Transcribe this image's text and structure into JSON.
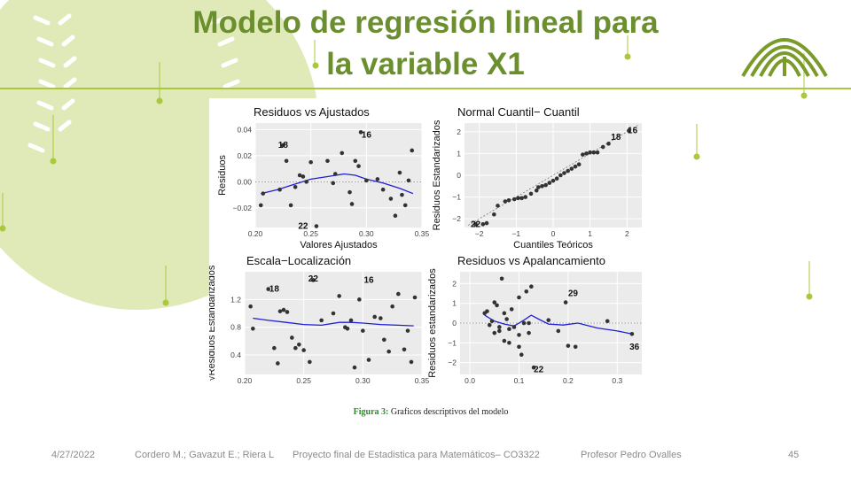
{
  "slide": {
    "title_line1": "Modelo de regresión lineal para",
    "title_line2": "la variable X1",
    "caption_label": "Figura 3:",
    "caption_text": " Graficos descriptivos del modelo",
    "footer_date": "4/27/2022",
    "footer_authors": "Cordero M.; Gavazut E.;  Riera L",
    "footer_project": "Proyecto final de Estadistica para Matemáticos– CO3322",
    "footer_professor": "Profesor Pedro Ovalles",
    "footer_page": "45"
  },
  "colors": {
    "accent": "#6b8e2e",
    "rule": "#a9c83b",
    "deco_circle": "#dfeab8",
    "panel_bg": "#ebebeb",
    "point": "#333333",
    "smooth": "#1f1fd6"
  },
  "chart_data": [
    {
      "type": "scatter",
      "title": "Residuos vs Ajustados",
      "xlabel": "Valores Ajustados",
      "ylabel": "Residuos",
      "xlim": [
        0.2,
        0.35
      ],
      "ylim": [
        -0.035,
        0.045
      ],
      "xticks": [
        0.2,
        0.25,
        0.3,
        0.35
      ],
      "xtick_labels": [
        "0.20",
        "0.25",
        "0.30",
        "0.35"
      ],
      "yticks": [
        -0.02,
        0.0,
        0.02,
        0.04
      ],
      "ytick_labels": [
        "−0.02",
        "0.00",
        "0.02",
        "0.04"
      ],
      "refline": 0,
      "points": [
        [
          0.205,
          -0.018
        ],
        [
          0.207,
          -0.009
        ],
        [
          0.222,
          -0.006
        ],
        [
          0.225,
          0.028
        ],
        [
          0.228,
          0.016
        ],
        [
          0.232,
          -0.018
        ],
        [
          0.236,
          -0.004
        ],
        [
          0.24,
          0.005
        ],
        [
          0.243,
          0.004
        ],
        [
          0.246,
          0.0
        ],
        [
          0.25,
          0.015
        ],
        [
          0.255,
          -0.034
        ],
        [
          0.265,
          0.016
        ],
        [
          0.27,
          -0.001
        ],
        [
          0.272,
          0.006
        ],
        [
          0.278,
          0.022
        ],
        [
          0.285,
          -0.008
        ],
        [
          0.287,
          -0.017
        ],
        [
          0.29,
          0.016
        ],
        [
          0.293,
          0.012
        ],
        [
          0.295,
          0.038
        ],
        [
          0.3,
          0.001
        ],
        [
          0.31,
          0.002
        ],
        [
          0.315,
          -0.006
        ],
        [
          0.322,
          -0.013
        ],
        [
          0.326,
          -0.026
        ],
        [
          0.33,
          0.007
        ],
        [
          0.332,
          -0.01
        ],
        [
          0.335,
          -0.018
        ],
        [
          0.338,
          0.001
        ],
        [
          0.341,
          0.024
        ]
      ],
      "smooth": [
        [
          0.205,
          -0.009
        ],
        [
          0.22,
          -0.006
        ],
        [
          0.235,
          -0.002
        ],
        [
          0.25,
          0.002
        ],
        [
          0.265,
          0.004
        ],
        [
          0.28,
          0.006
        ],
        [
          0.29,
          0.005
        ],
        [
          0.3,
          0.002
        ],
        [
          0.315,
          -0.001
        ],
        [
          0.33,
          -0.005
        ],
        [
          0.342,
          -0.009
        ]
      ],
      "labels": [
        {
          "text": "18",
          "x": 0.225,
          "y": 0.028
        },
        {
          "text": "16",
          "x": 0.3,
          "y": 0.036
        },
        {
          "text": "22",
          "x": 0.243,
          "y": -0.034
        }
      ]
    },
    {
      "type": "scatter",
      "title": "Normal Cuantil− Cuantil",
      "xlabel": "Cuantiles Teóricos",
      "ylabel": "Residuos Estandarizados",
      "xlim": [
        -2.4,
        2.4
      ],
      "ylim": [
        -2.4,
        2.4
      ],
      "xticks": [
        -2,
        -1,
        0,
        1,
        2
      ],
      "xtick_labels": [
        "−2",
        "−1",
        "0",
        "1",
        "2"
      ],
      "yticks": [
        -2,
        -1,
        0,
        1,
        2
      ],
      "ytick_labels": [
        "−2",
        "−1",
        "0",
        "1",
        "2"
      ],
      "refline_diag": [
        [
          -2.3,
          -2.3
        ],
        [
          2.3,
          2.3
        ]
      ],
      "points": [
        [
          -2.1,
          -2.25
        ],
        [
          -1.9,
          -2.25
        ],
        [
          -1.8,
          -2.2
        ],
        [
          -1.6,
          -1.8
        ],
        [
          -1.5,
          -1.4
        ],
        [
          -1.3,
          -1.2
        ],
        [
          -1.2,
          -1.15
        ],
        [
          -1.05,
          -1.1
        ],
        [
          -0.95,
          -1.05
        ],
        [
          -0.85,
          -1.05
        ],
        [
          -0.75,
          -1.0
        ],
        [
          -0.6,
          -0.85
        ],
        [
          -0.45,
          -0.7
        ],
        [
          -0.4,
          -0.55
        ],
        [
          -0.3,
          -0.5
        ],
        [
          -0.2,
          -0.45
        ],
        [
          -0.1,
          -0.35
        ],
        [
          0.0,
          -0.25
        ],
        [
          0.1,
          -0.15
        ],
        [
          0.2,
          0.0
        ],
        [
          0.3,
          0.1
        ],
        [
          0.4,
          0.2
        ],
        [
          0.5,
          0.3
        ],
        [
          0.6,
          0.4
        ],
        [
          0.7,
          0.5
        ],
        [
          0.8,
          0.95
        ],
        [
          0.9,
          1.0
        ],
        [
          1.0,
          1.05
        ],
        [
          1.1,
          1.05
        ],
        [
          1.2,
          1.05
        ],
        [
          1.35,
          1.3
        ],
        [
          1.5,
          1.45
        ],
        [
          2.05,
          2.05
        ]
      ],
      "labels": [
        {
          "text": "16",
          "x": 2.15,
          "y": 2.05
        },
        {
          "text": "18",
          "x": 1.7,
          "y": 1.75
        },
        {
          "text": "22",
          "x": -2.1,
          "y": -2.25
        }
      ]
    },
    {
      "type": "scatter",
      "title": "Escala−Localización",
      "xlabel": "Valores Ajustados",
      "ylabel": "√Residuos Estandarizados",
      "xlim": [
        0.2,
        0.35
      ],
      "ylim": [
        0.12,
        1.6
      ],
      "xticks": [
        0.2,
        0.25,
        0.3,
        0.35
      ],
      "xtick_labels": [
        "0.20",
        "0.25",
        "0.30",
        "0.35"
      ],
      "yticks": [
        0.4,
        0.8,
        1.2
      ],
      "ytick_labels": [
        "0.4",
        "0.8",
        "1.2"
      ],
      "points": [
        [
          0.205,
          1.1
        ],
        [
          0.207,
          0.78
        ],
        [
          0.22,
          1.35
        ],
        [
          0.225,
          0.5
        ],
        [
          0.228,
          0.28
        ],
        [
          0.23,
          1.03
        ],
        [
          0.233,
          1.05
        ],
        [
          0.236,
          1.02
        ],
        [
          0.24,
          0.65
        ],
        [
          0.243,
          0.5
        ],
        [
          0.246,
          0.55
        ],
        [
          0.25,
          0.47
        ],
        [
          0.255,
          0.3
        ],
        [
          0.258,
          1.48
        ],
        [
          0.265,
          0.9
        ],
        [
          0.275,
          1.0
        ],
        [
          0.28,
          1.25
        ],
        [
          0.285,
          0.8
        ],
        [
          0.287,
          0.78
        ],
        [
          0.29,
          0.9
        ],
        [
          0.293,
          0.22
        ],
        [
          0.297,
          1.2
        ],
        [
          0.3,
          0.75
        ],
        [
          0.305,
          0.33
        ],
        [
          0.31,
          0.95
        ],
        [
          0.315,
          0.93
        ],
        [
          0.318,
          0.62
        ],
        [
          0.322,
          0.45
        ],
        [
          0.325,
          1.1
        ],
        [
          0.33,
          1.28
        ],
        [
          0.335,
          0.48
        ],
        [
          0.338,
          0.75
        ],
        [
          0.341,
          0.3
        ],
        [
          0.344,
          1.23
        ]
      ],
      "smooth": [
        [
          0.207,
          0.93
        ],
        [
          0.22,
          0.9
        ],
        [
          0.235,
          0.87
        ],
        [
          0.25,
          0.84
        ],
        [
          0.265,
          0.83
        ],
        [
          0.28,
          0.87
        ],
        [
          0.29,
          0.87
        ],
        [
          0.3,
          0.86
        ],
        [
          0.315,
          0.84
        ],
        [
          0.33,
          0.83
        ],
        [
          0.343,
          0.82
        ]
      ],
      "labels": [
        {
          "text": "22",
          "x": 0.258,
          "y": 1.5
        },
        {
          "text": "16",
          "x": 0.305,
          "y": 1.48
        },
        {
          "text": "18",
          "x": 0.225,
          "y": 1.35
        }
      ]
    },
    {
      "type": "scatter",
      "title": "Residuos vs Apalancamiento",
      "xlabel": "Apalancamiento",
      "ylabel": "Residuos estandarizados",
      "xlim": [
        -0.02,
        0.35
      ],
      "ylim": [
        -2.6,
        2.6
      ],
      "xticks": [
        0.0,
        0.1,
        0.2,
        0.3
      ],
      "xtick_labels": [
        "0.0",
        "0.1",
        "0.2",
        "0.3"
      ],
      "yticks": [
        -2,
        -1,
        0,
        1,
        2
      ],
      "ytick_labels": [
        "−2",
        "−1",
        "0",
        "1",
        "2"
      ],
      "refline": 0,
      "points": [
        [
          0.03,
          0.5
        ],
        [
          0.035,
          0.6
        ],
        [
          0.04,
          -0.1
        ],
        [
          0.045,
          0.1
        ],
        [
          0.05,
          -0.5
        ],
        [
          0.05,
          1.05
        ],
        [
          0.055,
          0.9
        ],
        [
          0.06,
          -0.4
        ],
        [
          0.06,
          -0.2
        ],
        [
          0.065,
          2.25
        ],
        [
          0.07,
          -0.9
        ],
        [
          0.07,
          0.5
        ],
        [
          0.075,
          0.2
        ],
        [
          0.08,
          -1.0
        ],
        [
          0.08,
          -0.3
        ],
        [
          0.085,
          0.7
        ],
        [
          0.09,
          -0.2
        ],
        [
          0.1,
          -1.2
        ],
        [
          0.1,
          -0.6
        ],
        [
          0.1,
          1.3
        ],
        [
          0.105,
          -1.6
        ],
        [
          0.11,
          0.0
        ],
        [
          0.115,
          1.6
        ],
        [
          0.12,
          -0.5
        ],
        [
          0.12,
          0.0
        ],
        [
          0.125,
          1.85
        ],
        [
          0.13,
          -2.25
        ],
        [
          0.16,
          0.15
        ],
        [
          0.18,
          -0.4
        ],
        [
          0.195,
          1.05
        ],
        [
          0.2,
          -1.15
        ],
        [
          0.215,
          -1.2
        ],
        [
          0.28,
          0.1
        ],
        [
          0.33,
          -0.55
        ]
      ],
      "smooth": [
        [
          0.03,
          0.4
        ],
        [
          0.05,
          0.1
        ],
        [
          0.07,
          -0.05
        ],
        [
          0.09,
          -0.15
        ],
        [
          0.11,
          0.15
        ],
        [
          0.125,
          0.4
        ],
        [
          0.14,
          0.2
        ],
        [
          0.16,
          -0.05
        ],
        [
          0.19,
          -0.1
        ],
        [
          0.22,
          0.0
        ],
        [
          0.26,
          -0.25
        ],
        [
          0.3,
          -0.4
        ],
        [
          0.33,
          -0.55
        ]
      ],
      "labels": [
        {
          "text": "29",
          "x": 0.21,
          "y": 1.5
        },
        {
          "text": "36",
          "x": 0.335,
          "y": -1.2
        },
        {
          "text": "22",
          "x": 0.14,
          "y": -2.35
        }
      ]
    }
  ]
}
